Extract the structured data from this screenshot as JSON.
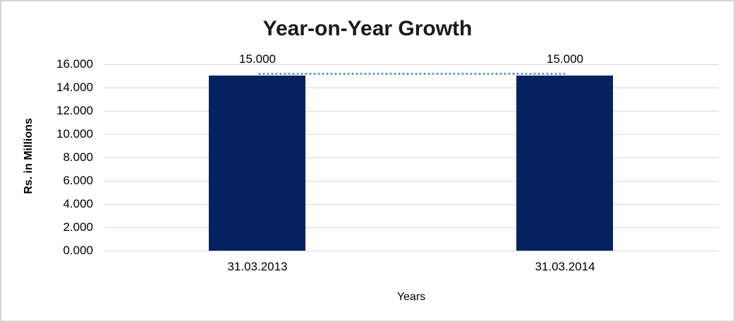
{
  "window": {
    "background": "#ffffff",
    "border_color": "#d4d4d4"
  },
  "chart_data": {
    "type": "bar",
    "title": "Year-on-Year Growth",
    "categories": [
      "31.03.2013",
      "31.03.2014"
    ],
    "series": [
      {
        "name": "Rs. in Millions",
        "values": [
          15000,
          15000
        ],
        "data_labels": [
          "15.000",
          "15.000"
        ],
        "color": "#04225f"
      }
    ],
    "trendline": {
      "style": "dotted",
      "color": "#5b9bd5",
      "points": [
        15000,
        15000
      ]
    },
    "xlabel": "Years",
    "ylabel": "Rs. in Millions",
    "ylim": [
      0,
      16000
    ],
    "ytick_step": 2000,
    "ytick_labels": [
      "16.000",
      "14.000",
      "12.000",
      "10.000",
      "8.000",
      "6.000",
      "4.000",
      "2.000",
      "0.000"
    ],
    "grid": true,
    "gridline_color": "#d9d9d9",
    "legend_position": "none"
  }
}
